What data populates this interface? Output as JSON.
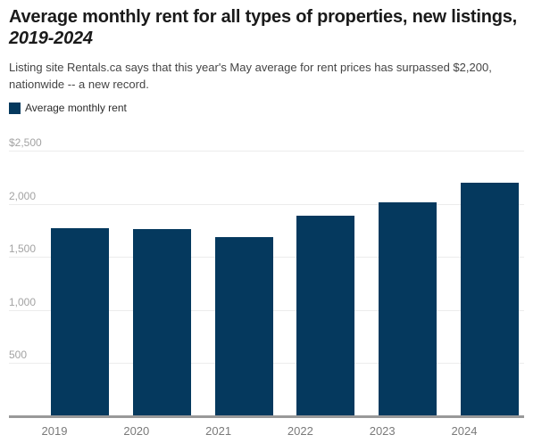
{
  "header": {
    "title_prefix": "Average monthly rent for all types of properties, new listings, ",
    "title_range": "2019-2024",
    "subtitle_lines": [
      "Listing site Rentals.ca says that this year's May average for rent prices has surpassed $2,200,",
      "nationwide -- a new record."
    ]
  },
  "legend": {
    "label": "Average monthly rent"
  },
  "colors": {
    "bar": "#05395E",
    "title_text": "#1A1A1A",
    "subtitle_text": "#454545",
    "axis_tick_text": "#A3A3A3",
    "x_tick_text": "#7A7A7A",
    "gridline": "#ECECEC",
    "axis_line": "#999999"
  },
  "chart_data": {
    "type": "bar",
    "title": "Average monthly rent for all types of properties, new listings, 2019-2024",
    "categories": [
      "2019",
      "2020",
      "2021",
      "2022",
      "2023",
      "2024"
    ],
    "series": [
      {
        "name": "Average monthly rent",
        "values": [
          1770,
          1760,
          1690,
          1890,
          2010,
          2200
        ]
      }
    ],
    "xlabel": "",
    "ylabel": "",
    "ylim": [
      0,
      2500
    ],
    "ytick_interval": 500,
    "yticks": [
      {
        "value": 2500,
        "label": "$2,500"
      },
      {
        "value": 2000,
        "label": "2,000"
      },
      {
        "value": 1500,
        "label": "1,500"
      },
      {
        "value": 1000,
        "label": "1,000"
      },
      {
        "value": 500,
        "label": "500"
      }
    ],
    "grid": true,
    "legend_position": "top-left"
  }
}
